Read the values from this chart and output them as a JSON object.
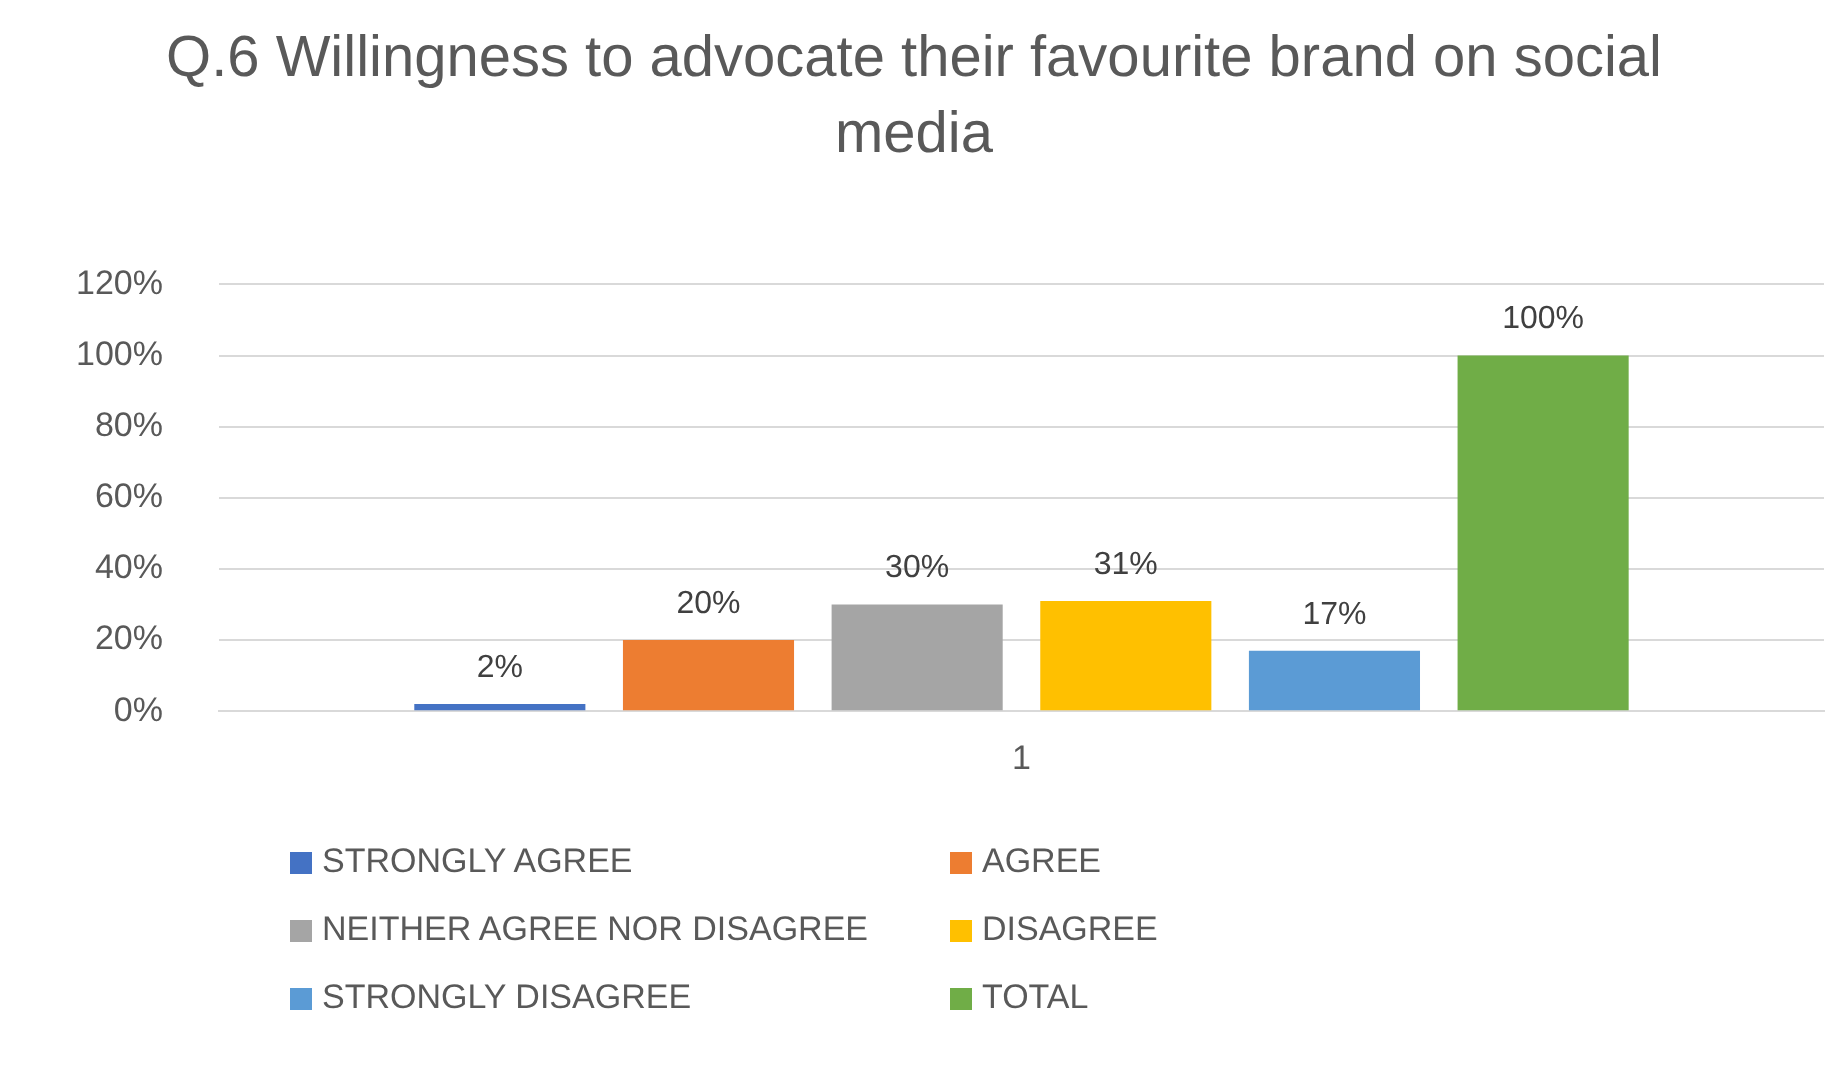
{
  "chart_data": {
    "type": "bar",
    "title": "Q.6 Willingness to advocate their favourite brand on social media",
    "categories": [
      "1"
    ],
    "series": [
      {
        "name": "STRONGLY AGREE",
        "color": "#4472c4",
        "values": [
          2
        ],
        "value_labels": [
          "2%"
        ]
      },
      {
        "name": "AGREE",
        "color": "#ed7d31",
        "values": [
          20
        ],
        "value_labels": [
          "20%"
        ]
      },
      {
        "name": "NEITHER AGREE NOR DISAGREE",
        "color": "#a5a5a5",
        "values": [
          30
        ],
        "value_labels": [
          "30%"
        ]
      },
      {
        "name": "DISAGREE",
        "color": "#ffc000",
        "values": [
          31
        ],
        "value_labels": [
          "31%"
        ]
      },
      {
        "name": "STRONGLY DISAGREE",
        "color": "#5b9bd5",
        "values": [
          17
        ],
        "value_labels": [
          "17%"
        ]
      },
      {
        "name": "TOTAL",
        "color": "#70ad47",
        "values": [
          100
        ],
        "value_labels": [
          "100%"
        ]
      }
    ],
    "ylim": [
      0,
      120
    ],
    "yticks": [
      {
        "value": 0,
        "label": "0%"
      },
      {
        "value": 20,
        "label": "20%"
      },
      {
        "value": 40,
        "label": "40%"
      },
      {
        "value": 60,
        "label": "60%"
      },
      {
        "value": 80,
        "label": "80%"
      },
      {
        "value": 100,
        "label": "100%"
      },
      {
        "value": 120,
        "label": "120%"
      }
    ],
    "grid": "y",
    "legend": "bottom"
  }
}
